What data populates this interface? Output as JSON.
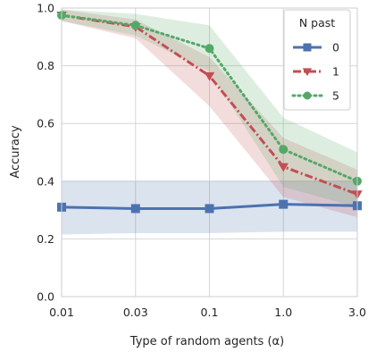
{
  "chart_data": {
    "type": "line",
    "x": [
      "0.01",
      "0.03",
      "0.1",
      "1.0",
      "3.0"
    ],
    "xlabel": "Type of random agents (α)",
    "ylabel": "Accuracy",
    "ylim": [
      0.0,
      1.0
    ],
    "yticks": [
      "0.0",
      "0.2",
      "0.4",
      "0.6",
      "0.8",
      "1.0"
    ],
    "grid": true,
    "legend": {
      "title": "N past",
      "placement": "top-right"
    },
    "series": [
      {
        "name": "0",
        "color": "#4c72b0",
        "style": "solid",
        "marker": "square",
        "values": [
          0.31,
          0.305,
          0.305,
          0.32,
          0.315
        ],
        "lower": [
          0.215,
          0.22,
          0.22,
          0.225,
          0.225
        ],
        "upper": [
          0.4,
          0.4,
          0.4,
          0.4,
          0.4
        ]
      },
      {
        "name": "1",
        "color": "#c44e52",
        "style": "dashdot",
        "marker": "triangle-down",
        "values": [
          0.975,
          0.935,
          0.765,
          0.45,
          0.355
        ],
        "lower": [
          0.955,
          0.895,
          0.66,
          0.345,
          0.275
        ],
        "upper": [
          0.995,
          0.96,
          0.83,
          0.55,
          0.44
        ]
      },
      {
        "name": "5",
        "color": "#55a868",
        "style": "dotted",
        "marker": "circle",
        "values": [
          0.975,
          0.94,
          0.86,
          0.51,
          0.4
        ],
        "lower": [
          0.955,
          0.905,
          0.78,
          0.38,
          0.31
        ],
        "upper": [
          0.995,
          0.98,
          0.94,
          0.62,
          0.5
        ]
      }
    ]
  }
}
